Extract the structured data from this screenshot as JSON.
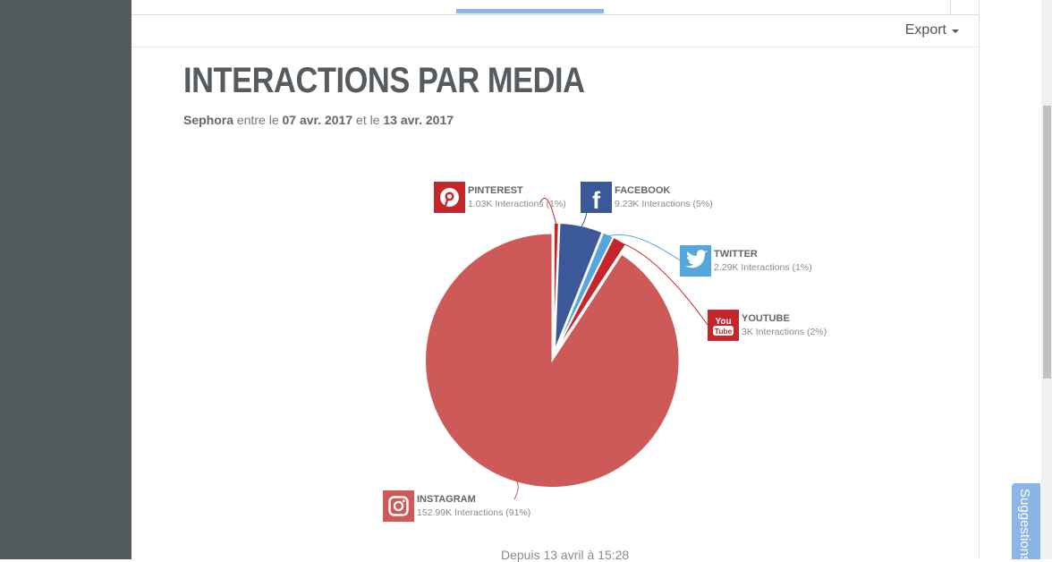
{
  "toolbar": {
    "export_label": "Export"
  },
  "page": {
    "title": "INTERACTIONS PAR MEDIA",
    "subtitle": {
      "brand": "Sephora",
      "between": "entre le",
      "date_start": "07 avr. 2017",
      "and": "et le",
      "date_end": "13 avr. 2017"
    },
    "footer": "Depuis 13 avril à 15:28"
  },
  "sidebar_tab": {
    "label": "Suggestions"
  },
  "colors": {
    "instagram": "#cd5a59",
    "pinterest": "#c4262b",
    "facebook": "#3b5998",
    "twitter": "#55a6dc",
    "youtube": "#c4262b"
  },
  "chart_data": {
    "type": "pie",
    "title": "INTERACTIONS PAR MEDIA",
    "slices": [
      {
        "name": "PINTEREST",
        "value": 1.03,
        "value_label": "1.03K Interactions (1%)",
        "percent": 1,
        "color": "#c4262b",
        "icon": "pinterest-icon"
      },
      {
        "name": "FACEBOOK",
        "value": 9.23,
        "value_label": "9.23K Interactions (5%)",
        "percent": 5,
        "color": "#3b5998",
        "icon": "facebook-icon"
      },
      {
        "name": "TWITTER",
        "value": 2.29,
        "value_label": "2.29K Interactions (1%)",
        "percent": 1,
        "color": "#55a6dc",
        "icon": "twitter-icon"
      },
      {
        "name": "YOUTUBE",
        "value": 3.0,
        "value_label": "3K Interactions (2%)",
        "percent": 2,
        "color": "#c4262b",
        "icon": "youtube-icon"
      },
      {
        "name": "INSTAGRAM",
        "value": 152.99,
        "value_label": "152.99K Interactions (91%)",
        "percent": 91,
        "color": "#cd5a59",
        "icon": "instagram-icon"
      }
    ],
    "unit": "K Interactions",
    "legend": "none"
  }
}
